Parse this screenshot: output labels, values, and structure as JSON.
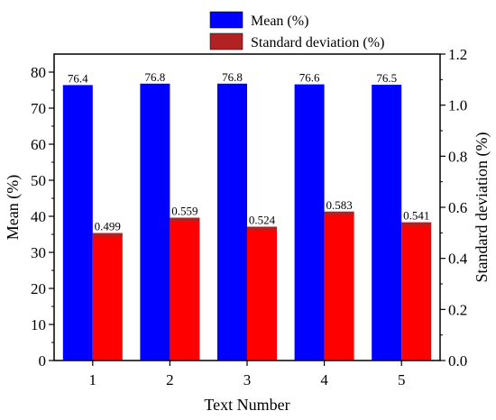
{
  "chart_data": {
    "type": "bar",
    "xlabel": "Text Number",
    "ylabel_left": "Mean (%)",
    "ylabel_right": "Standard deviation (%)",
    "categories": [
      "1",
      "2",
      "3",
      "4",
      "5"
    ],
    "ylim_left": [
      0,
      85
    ],
    "ylim_right": [
      0,
      1.2
    ],
    "left_ticks": [
      "0",
      "10",
      "20",
      "30",
      "40",
      "50",
      "60",
      "70",
      "80"
    ],
    "right_ticks": [
      "0.0",
      "0.2",
      "0.4",
      "0.6",
      "0.8",
      "1.0",
      "1.2"
    ],
    "legend_position": "top-center",
    "series": [
      {
        "name": "Mean (%)",
        "axis": "left",
        "color": "#0000ff",
        "values": [
          76.4,
          76.8,
          76.8,
          76.6,
          76.5
        ],
        "labels": [
          "76.4",
          "76.8",
          "76.8",
          "76.6",
          "76.5"
        ]
      },
      {
        "name": "Standard deviation (%)",
        "axis": "right",
        "color": "#ff0000",
        "legend_color": "#b22222",
        "values": [
          0.499,
          0.559,
          0.524,
          0.583,
          0.541
        ],
        "labels": [
          "0.499",
          "0.559",
          "0.524",
          "0.583",
          "0.541"
        ]
      }
    ]
  }
}
